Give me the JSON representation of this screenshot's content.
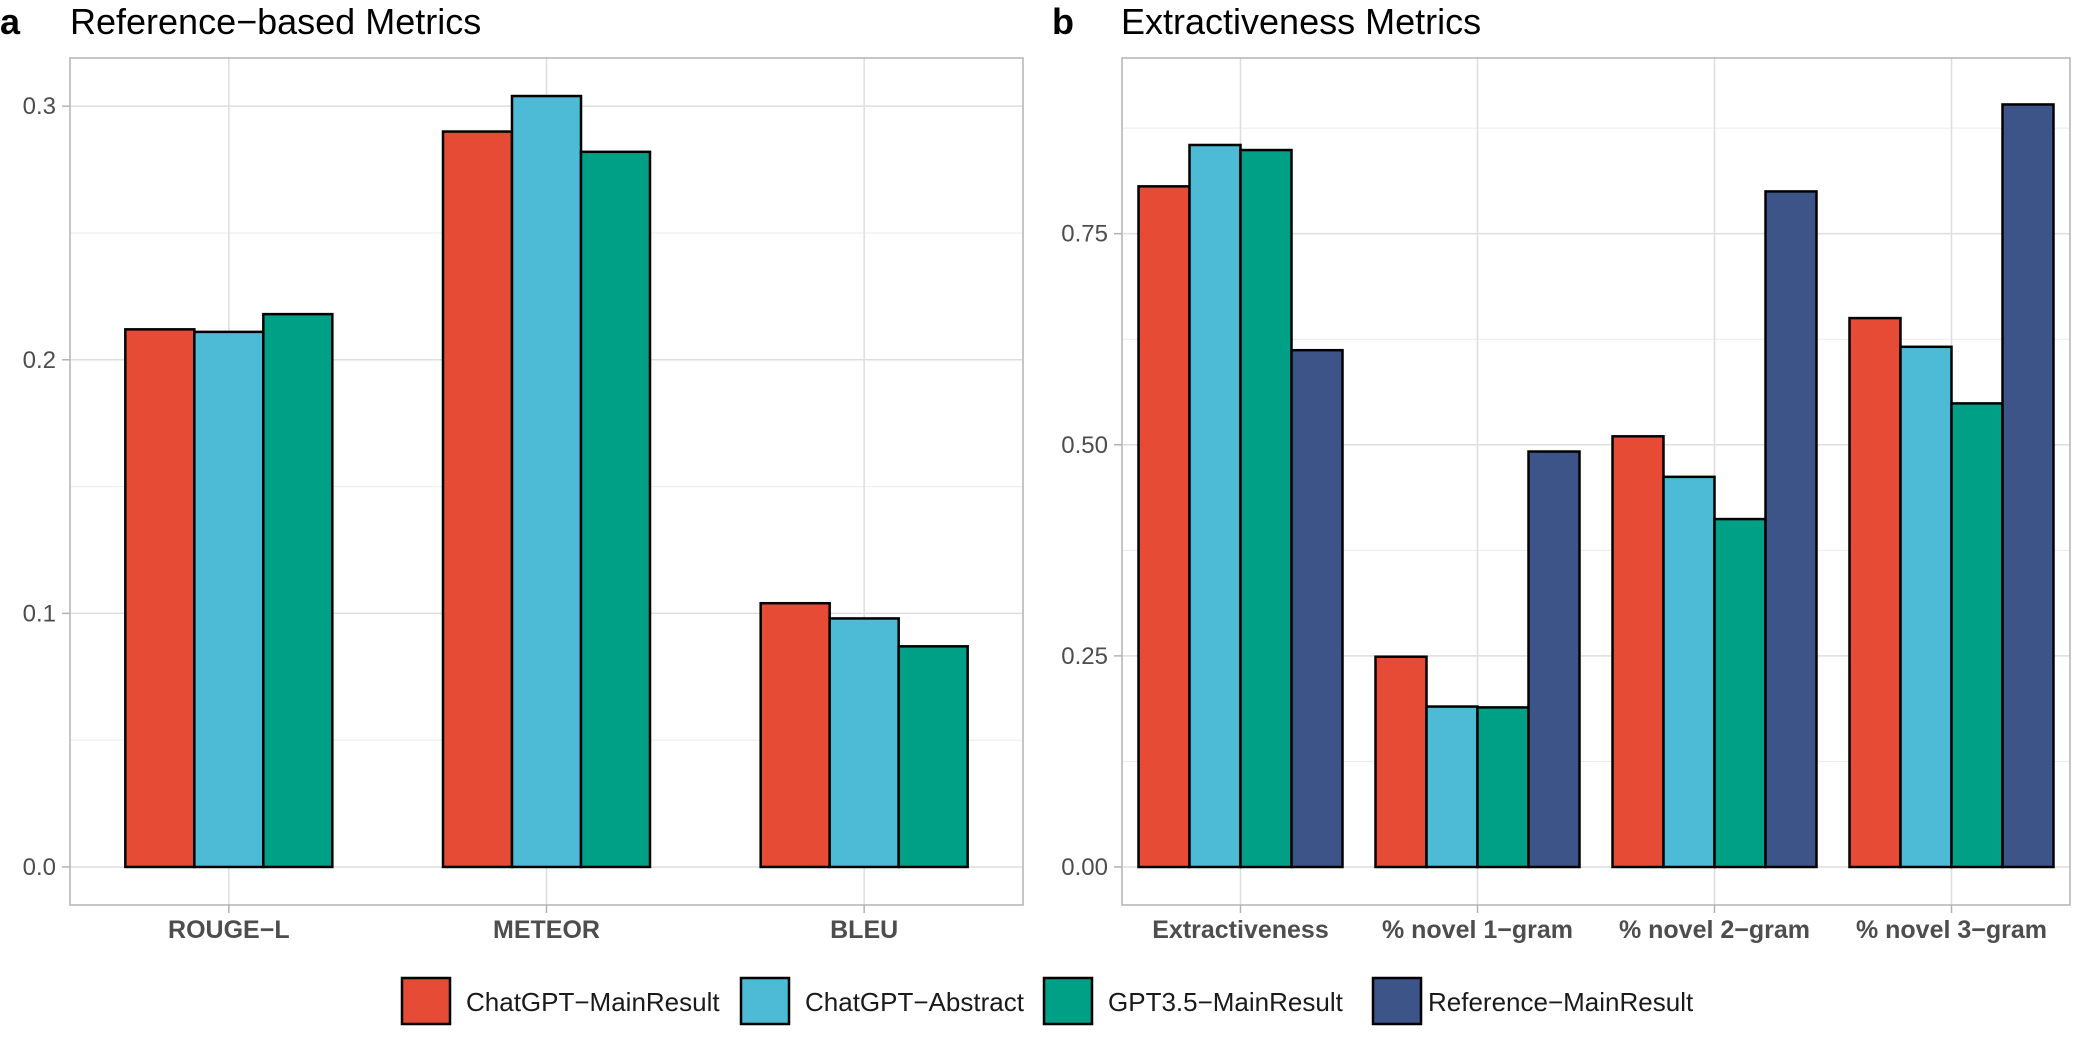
{
  "legend": [
    {
      "label": "ChatGPT−MainResult",
      "color": "#E64B35"
    },
    {
      "label": "ChatGPT−Abstract",
      "color": "#4DBBD5"
    },
    {
      "label": "GPT3.5−MainResult",
      "color": "#00A087"
    },
    {
      "label": "Reference−MainResult",
      "color": "#3C5488"
    }
  ],
  "chart_data": [
    {
      "type": "bar",
      "panel": "a",
      "title": "Reference−based Metrics",
      "categories": [
        "ROUGE−L",
        "METEOR",
        "BLEU"
      ],
      "series": [
        {
          "name": "ChatGPT−MainResult",
          "color": "#E64B35",
          "values": [
            0.212,
            0.29,
            0.104
          ]
        },
        {
          "name": "ChatGPT−Abstract",
          "color": "#4DBBD5",
          "values": [
            0.211,
            0.304,
            0.098
          ]
        },
        {
          "name": "GPT3.5−MainResult",
          "color": "#00A087",
          "values": [
            0.218,
            0.282,
            0.087
          ]
        }
      ],
      "yticks": [
        0.0,
        0.1,
        0.2,
        0.3
      ],
      "ytick_labels": [
        "0.0",
        "0.1",
        "0.2",
        "0.3"
      ],
      "ylim": [
        -0.015,
        0.319
      ],
      "xlabel": "",
      "ylabel": "",
      "grid": true,
      "legend_position": "bottom"
    },
    {
      "type": "bar",
      "panel": "b",
      "title": "Extractiveness Metrics",
      "categories": [
        "Extractiveness",
        "% novel 1−gram",
        "% novel 2−gram",
        "% novel 3−gram"
      ],
      "series": [
        {
          "name": "ChatGPT−MainResult",
          "color": "#E64B35",
          "values": [
            0.806,
            0.249,
            0.51,
            0.65
          ]
        },
        {
          "name": "ChatGPT−Abstract",
          "color": "#4DBBD5",
          "values": [
            0.855,
            0.19,
            0.462,
            0.616
          ]
        },
        {
          "name": "GPT3.5−MainResult",
          "color": "#00A087",
          "values": [
            0.849,
            0.189,
            0.412,
            0.549
          ]
        },
        {
          "name": "Reference−MainResult",
          "color": "#3C5488",
          "values": [
            0.612,
            0.492,
            0.8,
            0.903
          ]
        }
      ],
      "yticks": [
        0.0,
        0.25,
        0.5,
        0.75
      ],
      "ytick_labels": [
        "0.00",
        "0.25",
        "0.50",
        "0.75"
      ],
      "ylim": [
        -0.045,
        0.958
      ],
      "xlabel": "",
      "ylabel": "",
      "grid": true,
      "legend_position": "bottom"
    }
  ]
}
